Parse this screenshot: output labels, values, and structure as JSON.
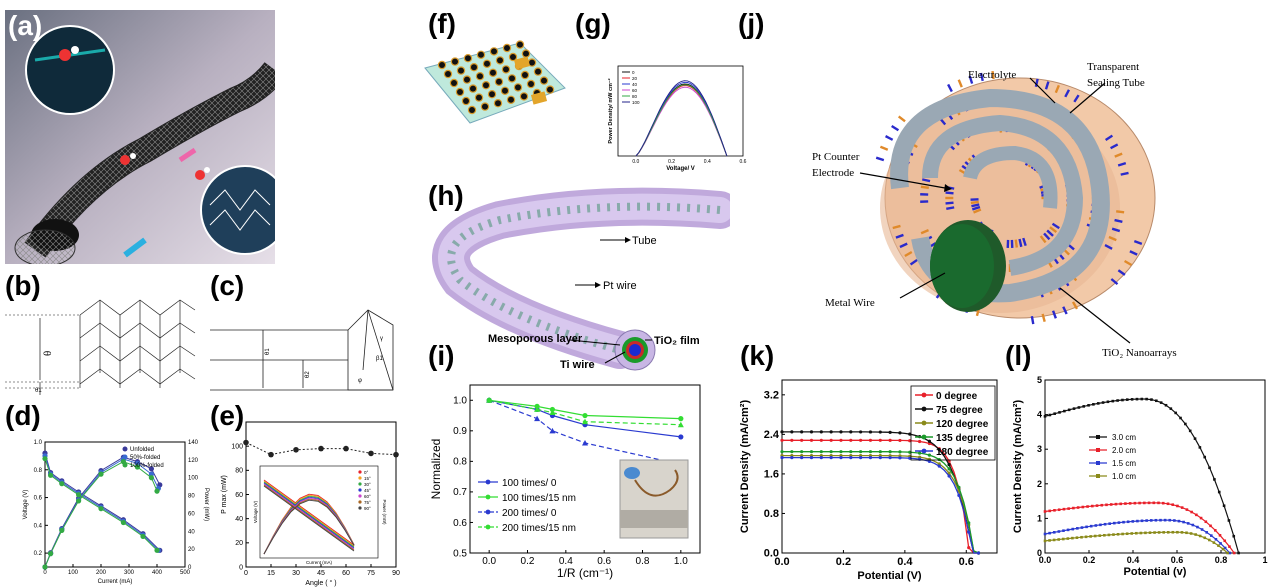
{
  "panels": {
    "a": "(a)",
    "b": "(b)",
    "c": "(c)",
    "d": "(d)",
    "e": "(e)",
    "f": "(f)",
    "g": "(g)",
    "h": "(h)",
    "i": "(i)",
    "j": "(j)",
    "k": "(k)",
    "l": "(l)"
  },
  "b_labels": {
    "theta": "θ",
    "theta1": "θ1"
  },
  "c_labels": {
    "t1": "θ1",
    "t2": "θ2",
    "phi": "φ",
    "b1": "β1",
    "gamma": "γ"
  },
  "h_labels": {
    "tube": "Tube",
    "pt_wire": "Pt wire",
    "meso": "Mesoporous layer",
    "tio2": "TiO₂ film",
    "ti_wire": "Ti wire"
  },
  "j_labels": {
    "electrolyte": "Electrolyte",
    "sealing1": "Transparent",
    "sealing2": "Sealing Tube",
    "pt1": "Pt Counter",
    "pt2": "Electrode",
    "metal": "Metal Wire",
    "tio2": "TiO₂ Nanoarrays"
  },
  "colors": {
    "red": "#e8202a",
    "black": "#111111",
    "olive": "#8a8a1a",
    "green": "#1a9a2a",
    "blue": "#2a3ad0",
    "bright_green": "#33dd33"
  },
  "chart_data": [
    {
      "id": "d",
      "type": "line",
      "xlabel": "Current (mA)",
      "ylabel": "Voltage (V)",
      "y2label": "Power (mW)",
      "xlim": [
        0,
        500
      ],
      "ylim": [
        0.1,
        1.0
      ],
      "y2lim": [
        0,
        140
      ],
      "xticks": [
        "0",
        "100",
        "200",
        "300",
        "400",
        "500"
      ],
      "yticks": [
        "0.2",
        "0.4",
        "0.6",
        "0.8",
        "1.0"
      ],
      "y2ticks": [
        "0",
        "20",
        "40",
        "60",
        "80",
        "100",
        "120",
        "140"
      ],
      "series": [
        {
          "name": "Unfolded",
          "color": "#3a3a9a",
          "voltage": [
            [
              0,
              0.92
            ],
            [
              20,
              0.78
            ],
            [
              60,
              0.72
            ],
            [
              120,
              0.64
            ],
            [
              200,
              0.54
            ],
            [
              280,
              0.44
            ],
            [
              350,
              0.34
            ],
            [
              410,
              0.22
            ]
          ],
          "power": [
            [
              0,
              0
            ],
            [
              20,
              16
            ],
            [
              60,
              43
            ],
            [
              120,
              77
            ],
            [
              200,
              108
            ],
            [
              280,
              123
            ],
            [
              330,
              118
            ],
            [
              380,
              110
            ],
            [
              410,
              92
            ]
          ]
        },
        {
          "name": "50%-folded",
          "color": "#3a6ad0",
          "voltage": [
            [
              0,
              0.9
            ],
            [
              20,
              0.77
            ],
            [
              60,
              0.71
            ],
            [
              120,
              0.63
            ],
            [
              200,
              0.53
            ],
            [
              280,
              0.43
            ],
            [
              350,
              0.33
            ],
            [
              405,
              0.22
            ]
          ],
          "power": [
            [
              0,
              0
            ],
            [
              20,
              15
            ],
            [
              60,
              42
            ],
            [
              120,
              75
            ],
            [
              200,
              106
            ],
            [
              280,
              121
            ],
            [
              330,
              116
            ],
            [
              380,
              104
            ],
            [
              405,
              88
            ]
          ]
        },
        {
          "name": "100%-folded",
          "color": "#33aa44",
          "voltage": [
            [
              0,
              0.88
            ],
            [
              20,
              0.76
            ],
            [
              60,
              0.7
            ],
            [
              120,
              0.62
            ],
            [
              200,
              0.52
            ],
            [
              280,
              0.42
            ],
            [
              350,
              0.32
            ],
            [
              400,
              0.22
            ]
          ],
          "power": [
            [
              0,
              0
            ],
            [
              20,
              15
            ],
            [
              60,
              41
            ],
            [
              120,
              74
            ],
            [
              200,
              104
            ],
            [
              280,
              118
            ],
            [
              330,
              112
            ],
            [
              380,
              100
            ],
            [
              400,
              85
            ]
          ]
        }
      ]
    },
    {
      "id": "e",
      "type": "scatter",
      "xlabel": "Angle ( ° )",
      "ylabel": "P max (mW)",
      "xlim": [
        0,
        90
      ],
      "ylim": [
        0,
        120
      ],
      "xticks": [
        "0",
        "15",
        "30",
        "45",
        "60",
        "75",
        "90"
      ],
      "yticks": [
        "0",
        "20",
        "40",
        "60",
        "80",
        "100"
      ],
      "points": [
        [
          0,
          103
        ],
        [
          15,
          93
        ],
        [
          30,
          97
        ],
        [
          45,
          98
        ],
        [
          60,
          98
        ],
        [
          75,
          94
        ],
        [
          90,
          93
        ]
      ],
      "inset": {
        "xlabel": "Current (mA)",
        "ylabel": "Voltage (V)",
        "y2label": "Power (mW)",
        "legend": [
          "0°",
          "15°",
          "30°",
          "45°",
          "60°",
          "75°",
          "90°"
        ]
      }
    },
    {
      "id": "g",
      "type": "line",
      "xlabel": "Voltage/ V",
      "ylabel": "Power Density/ mW cm⁻²",
      "xlim": [
        -0.1,
        0.6
      ],
      "ylim": [
        0,
        1.0
      ],
      "xticks": [
        "0.0",
        "0.2",
        "0.4",
        "0.6"
      ],
      "legend": [
        "0",
        "20",
        "40",
        "60",
        "80",
        "100"
      ],
      "peaks": [
        0.88,
        0.86,
        0.9,
        0.84,
        0.87,
        0.92
      ]
    },
    {
      "id": "i",
      "type": "line",
      "xlabel": "1/R (cm⁻¹)",
      "ylabel": "Normalized",
      "xlim": [
        -0.1,
        1.1
      ],
      "ylim": [
        0.5,
        1.05
      ],
      "xticks": [
        "0.0",
        "0.2",
        "0.4",
        "0.6",
        "0.8",
        "1.0"
      ],
      "yticks": [
        "0.5",
        "0.6",
        "0.7",
        "0.8",
        "0.9",
        "1.0"
      ],
      "x": [
        0.0,
        0.25,
        0.33,
        0.5,
        1.0
      ],
      "series": [
        {
          "name": "100 times/ 0",
          "color": "#2a3ad0",
          "dash": false,
          "marker": "circle",
          "values": [
            1.0,
            0.97,
            0.95,
            0.92,
            0.88
          ]
        },
        {
          "name": "100 times/15 nm",
          "color": "#33dd33",
          "dash": false,
          "marker": "circle",
          "values": [
            1.0,
            0.98,
            0.97,
            0.95,
            0.94
          ]
        },
        {
          "name": "200 times/ 0",
          "color": "#2a3ad0",
          "dash": true,
          "marker": "triangle",
          "values": [
            1.0,
            0.94,
            0.9,
            0.86,
            0.79
          ]
        },
        {
          "name": "200 times/15 nm",
          "color": "#33dd33",
          "dash": true,
          "marker": "triangle",
          "values": [
            1.0,
            0.97,
            0.96,
            0.93,
            0.92
          ]
        }
      ]
    },
    {
      "id": "k",
      "type": "line",
      "xlabel": "Potential (V)",
      "ylabel": "Current Density (mA/cm²)",
      "xlim": [
        0,
        0.7
      ],
      "ylim": [
        0,
        3.5
      ],
      "xticks": [
        "0.0",
        "0.2",
        "0.4",
        "0.6"
      ],
      "yticks": [
        "0.0",
        "0.8",
        "1.6",
        "2.4",
        "3.2"
      ],
      "series": [
        {
          "name": "0 degree",
          "color": "#e8202a",
          "isc": 2.28,
          "voc": 0.61,
          "knee": 0.54
        },
        {
          "name": "75 degree",
          "color": "#111111",
          "isc": 2.45,
          "voc": 0.62,
          "knee": 0.3
        },
        {
          "name": "120 degree",
          "color": "#8a8a1a",
          "isc": 1.97,
          "voc": 0.625,
          "knee": 0.42
        },
        {
          "name": "135 degree",
          "color": "#1a9a2a",
          "isc": 2.05,
          "voc": 0.625,
          "knee": 0.44
        },
        {
          "name": "180 degree",
          "color": "#2a3ad0",
          "isc": 1.93,
          "voc": 0.62,
          "knee": 0.43
        }
      ]
    },
    {
      "id": "l",
      "type": "line",
      "xlabel": "Potential (v)",
      "ylabel": "Current Density (mA/cm²)",
      "xlim": [
        0,
        1.0
      ],
      "ylim": [
        0,
        5
      ],
      "xticks": [
        "0.0",
        "0.2",
        "0.4",
        "0.6",
        "0.8",
        "1"
      ],
      "yticks": [
        "0",
        "1",
        "2",
        "3",
        "4",
        "5"
      ],
      "series": [
        {
          "name": "3.0 cm",
          "color": "#111111",
          "isc": 3.95,
          "peak": 4.45,
          "peakx": 0.45,
          "voc": 0.88
        },
        {
          "name": "2.0 cm",
          "color": "#e8202a",
          "isc": 1.2,
          "peak": 1.45,
          "peakx": 0.5,
          "voc": 0.86
        },
        {
          "name": "1.5 cm",
          "color": "#2a3ad0",
          "isc": 0.55,
          "peak": 0.95,
          "peakx": 0.55,
          "voc": 0.84
        },
        {
          "name": "1.0 cm",
          "color": "#8a8a1a",
          "isc": 0.35,
          "peak": 0.6,
          "peakx": 0.6,
          "voc": 0.83
        }
      ]
    }
  ]
}
